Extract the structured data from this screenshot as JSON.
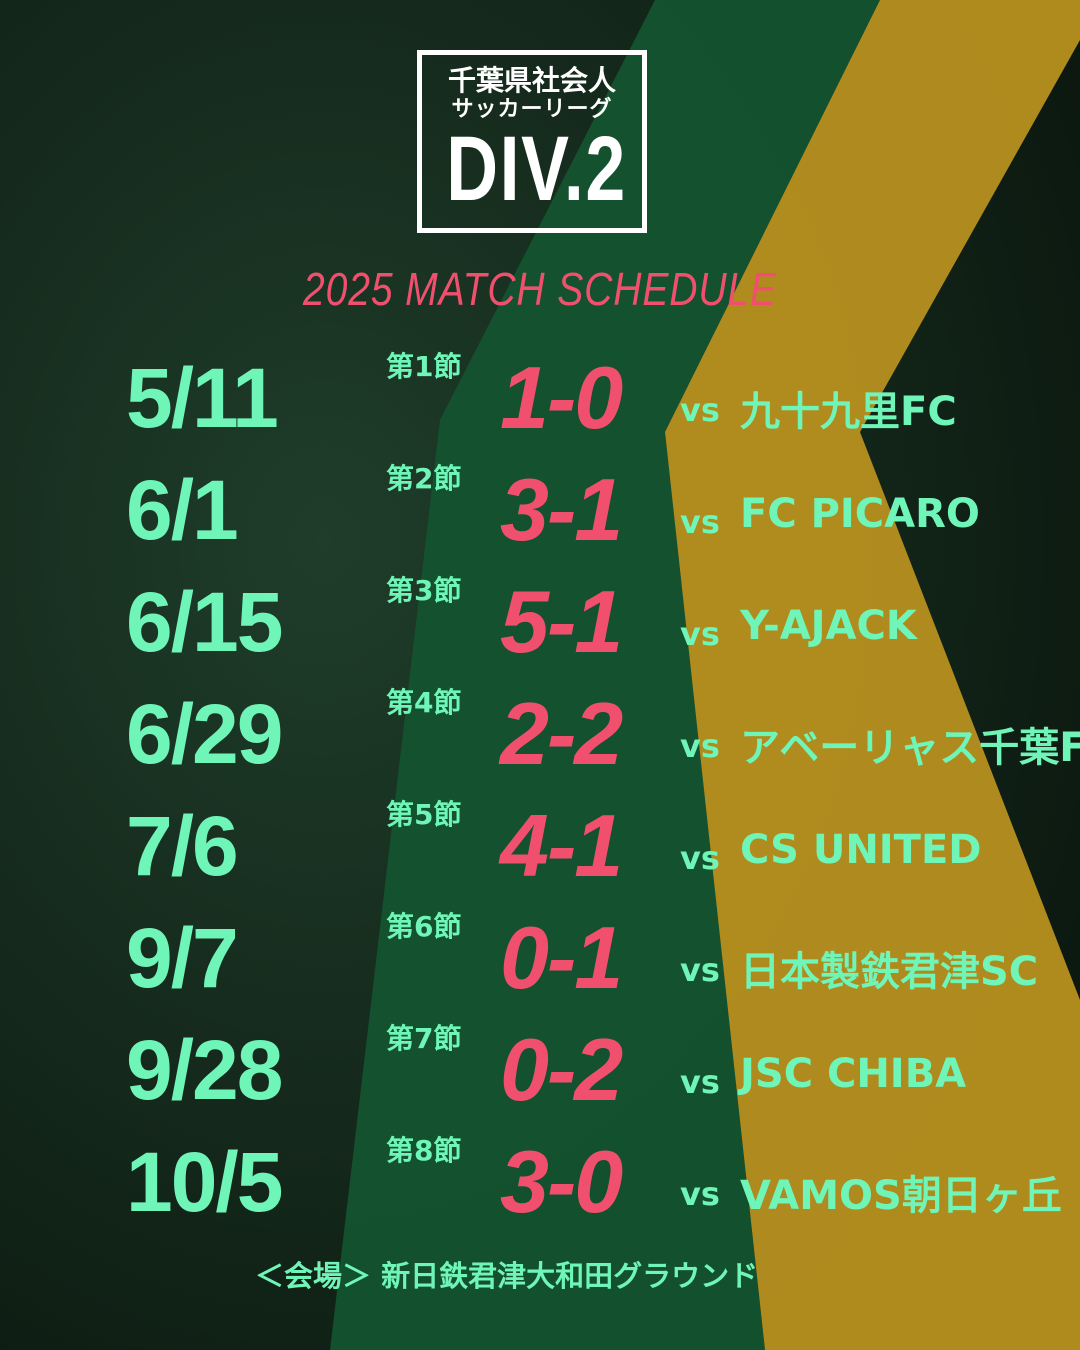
{
  "colors": {
    "accent_mint": "#6ff5b8",
    "accent_pink": "#f0506e",
    "band_green": "#14532f",
    "band_gold": "#b8901f",
    "background": "#0f1f15"
  },
  "logo": {
    "line1": "千葉県社会人",
    "line2": "サッカーリーグ",
    "line3": "DIV.2"
  },
  "subtitle": "2025 MATCH SCHEDULE",
  "vs_label": "vs",
  "matches": [
    {
      "date": "5/11",
      "round": "第1節",
      "score": "1-0",
      "opponent": "九十九里FC"
    },
    {
      "date": "6/1",
      "round": "第2節",
      "score": "3-1",
      "opponent": "FC PICARO"
    },
    {
      "date": "6/15",
      "round": "第3節",
      "score": "5-1",
      "opponent": "Y-AJACK"
    },
    {
      "date": "6/29",
      "round": "第4節",
      "score": "2-2",
      "opponent": "アベーリャス千葉FC"
    },
    {
      "date": "7/6",
      "round": "第5節",
      "score": "4-1",
      "opponent": "CS UNITED"
    },
    {
      "date": "9/7",
      "round": "第6節",
      "score": "0-1",
      "opponent": "日本製鉄君津SC"
    },
    {
      "date": "9/28",
      "round": "第7節",
      "score": "0-2",
      "opponent": "JSC CHIBA"
    },
    {
      "date": "10/5",
      "round": "第8節",
      "score": "3-0",
      "opponent": "VAMOS朝日ヶ丘"
    }
  ],
  "venue": "＜会場＞ 新日鉄君津大和田グラウンド"
}
